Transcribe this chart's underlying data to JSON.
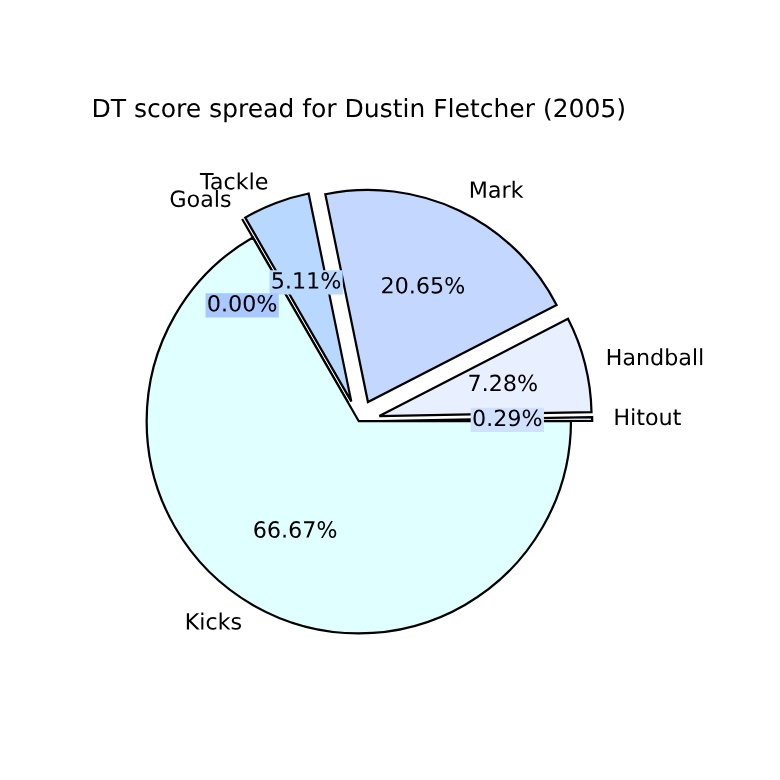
{
  "chart_data": {
    "type": "pie",
    "title": "DT score spread for Dustin Fletcher (2005)",
    "categories": [
      "Hitout",
      "Handball",
      "Mark",
      "Tackle",
      "Goals",
      "Kicks"
    ],
    "values": [
      0.29,
      7.28,
      20.65,
      5.11,
      0.0,
      66.67
    ],
    "value_labels": [
      "0.29%",
      "7.28%",
      "20.65%",
      "5.11%",
      "0.00%",
      "66.67%"
    ],
    "colors": [
      "#d0e0ff",
      "#e8f0ff",
      "#c4d8ff",
      "#b8d8ff",
      "#a8c8ff",
      "#e0ffff"
    ]
  }
}
